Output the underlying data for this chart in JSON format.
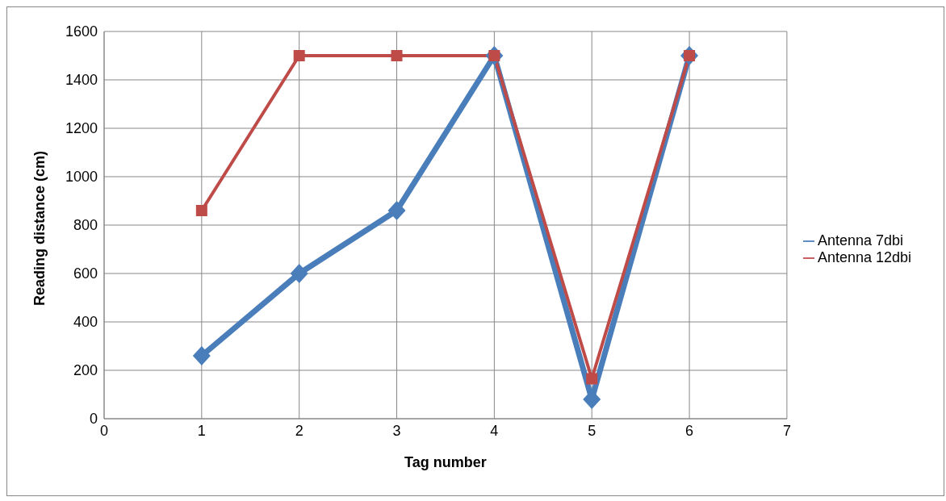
{
  "chart_data": {
    "type": "line",
    "xlabel": "Tag number",
    "ylabel": "Reading distance (cm)",
    "x": [
      1,
      2,
      3,
      4,
      5,
      6
    ],
    "series": [
      {
        "name": "Antenna 7dbi",
        "color": "#4a7ebb",
        "values": [
          260,
          600,
          860,
          1500,
          80,
          1500
        ],
        "marker": "diamond"
      },
      {
        "name": "Antenna 12dbi",
        "color": "#be4b48",
        "values": [
          860,
          1500,
          1500,
          1500,
          165,
          1500
        ],
        "marker": "square"
      }
    ],
    "xlim": [
      0,
      7
    ],
    "xticks": [
      0,
      1,
      2,
      3,
      4,
      5,
      6,
      7
    ],
    "ylim": [
      0,
      1600
    ],
    "yticks": [
      0,
      200,
      400,
      600,
      800,
      1000,
      1200,
      1400,
      1600
    ],
    "grid": true,
    "legend": "right"
  }
}
